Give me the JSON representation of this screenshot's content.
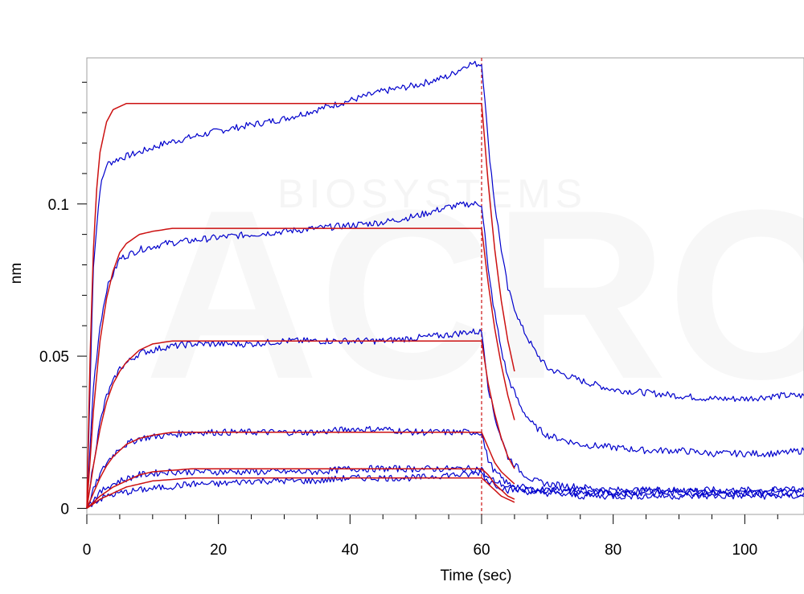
{
  "chart_data": {
    "type": "line",
    "title": "",
    "xlabel": "Time (sec)",
    "ylabel": "nm",
    "xlim": [
      0,
      109
    ],
    "ylim": [
      -0.002,
      0.148
    ],
    "grid": false,
    "legend": "none",
    "x_ticks": [
      {
        "value": 0,
        "label": "0"
      },
      {
        "value": 20,
        "label": "20"
      },
      {
        "value": 40,
        "label": "40"
      },
      {
        "value": 60,
        "label": "60"
      },
      {
        "value": 80,
        "label": "80"
      },
      {
        "value": 100,
        "label": "100"
      }
    ],
    "y_ticks": [
      {
        "value": 0,
        "label": "0"
      },
      {
        "value": 0.05,
        "label": "0.05"
      },
      {
        "value": 0.1,
        "label": "0.1"
      }
    ],
    "watermark": {
      "logo": "ACRO",
      "text": "BIOSYSTEMS"
    },
    "colors": {
      "measured": "#0000cc",
      "fit": "#cc1111",
      "marker": "#cc1111",
      "axis": "#a0a0a0"
    },
    "phase_marker_x": 60,
    "measured_series": [
      {
        "x": [
          0,
          1,
          2,
          3,
          5,
          8,
          12,
          16,
          20,
          25,
          30,
          35,
          40,
          45,
          50,
          55,
          58,
          60,
          60.5,
          61,
          62,
          63,
          64,
          66,
          68,
          70,
          75,
          80,
          85,
          90,
          95,
          100,
          105,
          109
        ],
        "y": [
          0,
          0.08,
          0.105,
          0.113,
          0.115,
          0.117,
          0.12,
          0.122,
          0.124,
          0.126,
          0.128,
          0.131,
          0.134,
          0.137,
          0.139,
          0.142,
          0.146,
          0.146,
          0.135,
          0.12,
          0.1,
          0.085,
          0.072,
          0.06,
          0.052,
          0.046,
          0.042,
          0.039,
          0.038,
          0.037,
          0.036,
          0.036,
          0.037,
          0.037
        ]
      },
      {
        "x": [
          0,
          1,
          2,
          3,
          5,
          8,
          12,
          16,
          20,
          25,
          30,
          35,
          40,
          45,
          50,
          55,
          58,
          60,
          60.5,
          61,
          62,
          63,
          64,
          66,
          68,
          70,
          75,
          80,
          85,
          90,
          95,
          100,
          105,
          109
        ],
        "y": [
          0,
          0.04,
          0.06,
          0.072,
          0.082,
          0.085,
          0.087,
          0.088,
          0.089,
          0.09,
          0.091,
          0.092,
          0.093,
          0.094,
          0.096,
          0.099,
          0.1,
          0.1,
          0.09,
          0.078,
          0.064,
          0.052,
          0.043,
          0.033,
          0.027,
          0.024,
          0.021,
          0.02,
          0.019,
          0.019,
          0.018,
          0.018,
          0.018,
          0.019
        ]
      },
      {
        "x": [
          0,
          1,
          2,
          3,
          5,
          8,
          12,
          16,
          20,
          25,
          30,
          35,
          40,
          45,
          50,
          55,
          58,
          60,
          60.5,
          61,
          62,
          63,
          64,
          66,
          68,
          70,
          75,
          80,
          85,
          90,
          95,
          100,
          105,
          109
        ],
        "y": [
          0,
          0.015,
          0.028,
          0.037,
          0.046,
          0.051,
          0.053,
          0.054,
          0.054,
          0.054,
          0.055,
          0.055,
          0.055,
          0.055,
          0.056,
          0.057,
          0.058,
          0.058,
          0.05,
          0.04,
          0.03,
          0.023,
          0.017,
          0.012,
          0.009,
          0.008,
          0.007,
          0.006,
          0.006,
          0.006,
          0.006,
          0.006,
          0.006,
          0.006
        ]
      },
      {
        "x": [
          0,
          1,
          2,
          3,
          5,
          8,
          12,
          16,
          20,
          25,
          30,
          35,
          40,
          45,
          50,
          55,
          58,
          60,
          60.5,
          61,
          62,
          63,
          64,
          66,
          68,
          70,
          75,
          80,
          85,
          90,
          95,
          100,
          105,
          109
        ],
        "y": [
          0,
          0.006,
          0.011,
          0.015,
          0.02,
          0.023,
          0.024,
          0.025,
          0.025,
          0.025,
          0.025,
          0.025,
          0.026,
          0.026,
          0.025,
          0.025,
          0.025,
          0.025,
          0.02,
          0.016,
          0.012,
          0.01,
          0.008,
          0.007,
          0.006,
          0.006,
          0.005,
          0.005,
          0.005,
          0.005,
          0.005,
          0.005,
          0.005,
          0.005
        ]
      },
      {
        "x": [
          0,
          1,
          2,
          3,
          5,
          8,
          12,
          16,
          20,
          25,
          30,
          35,
          40,
          45,
          50,
          55,
          58,
          60,
          60.5,
          61,
          62,
          63,
          64,
          66,
          68,
          70,
          75,
          80,
          85,
          90,
          95,
          100,
          105,
          109
        ],
        "y": [
          0,
          0.003,
          0.005,
          0.007,
          0.009,
          0.011,
          0.012,
          0.012,
          0.012,
          0.012,
          0.012,
          0.012,
          0.013,
          0.013,
          0.013,
          0.013,
          0.013,
          0.013,
          0.011,
          0.01,
          0.009,
          0.008,
          0.007,
          0.006,
          0.006,
          0.006,
          0.006,
          0.005,
          0.006,
          0.006,
          0.005,
          0.005,
          0.006,
          0.006
        ]
      },
      {
        "x": [
          0,
          1,
          2,
          3,
          5,
          8,
          12,
          16,
          20,
          25,
          30,
          35,
          40,
          45,
          50,
          55,
          58,
          60,
          60.5,
          61,
          62,
          63,
          64,
          66,
          68,
          70,
          75,
          80,
          85,
          90,
          95,
          100,
          105,
          109
        ],
        "y": [
          0,
          0.002,
          0.003,
          0.004,
          0.005,
          0.006,
          0.007,
          0.008,
          0.008,
          0.009,
          0.009,
          0.009,
          0.01,
          0.01,
          0.01,
          0.011,
          0.011,
          0.012,
          0.01,
          0.009,
          0.008,
          0.007,
          0.006,
          0.006,
          0.005,
          0.005,
          0.004,
          0.004,
          0.004,
          0.004,
          0.004,
          0.004,
          0.004,
          0.004
        ]
      }
    ],
    "fit_series": [
      {
        "x": [
          0,
          0.5,
          1,
          1.5,
          2,
          3,
          4,
          5,
          6,
          8,
          10,
          60,
          60.5,
          61,
          62,
          63,
          64,
          65
        ],
        "y": [
          0,
          0.05,
          0.085,
          0.105,
          0.117,
          0.127,
          0.131,
          0.132,
          0.133,
          0.133,
          0.133,
          0.133,
          0.12,
          0.107,
          0.085,
          0.068,
          0.055,
          0.045
        ]
      },
      {
        "x": [
          0,
          1,
          2,
          3,
          4,
          5,
          6,
          8,
          10,
          13,
          60,
          60.5,
          61,
          62,
          63,
          64,
          65
        ],
        "y": [
          0,
          0.032,
          0.055,
          0.069,
          0.078,
          0.084,
          0.087,
          0.09,
          0.091,
          0.092,
          0.092,
          0.083,
          0.074,
          0.059,
          0.047,
          0.037,
          0.029
        ]
      },
      {
        "x": [
          0,
          1,
          2,
          3,
          4,
          5,
          6,
          8,
          10,
          13,
          16,
          60,
          60.5,
          61,
          62,
          63,
          64,
          65
        ],
        "y": [
          0,
          0.014,
          0.026,
          0.035,
          0.041,
          0.045,
          0.048,
          0.052,
          0.054,
          0.055,
          0.055,
          0.055,
          0.048,
          0.041,
          0.031,
          0.023,
          0.017,
          0.013
        ]
      },
      {
        "x": [
          0,
          1,
          2,
          3,
          4,
          5,
          6,
          8,
          10,
          13,
          16,
          60,
          61,
          62,
          63,
          64,
          65
        ],
        "y": [
          0,
          0.005,
          0.01,
          0.014,
          0.017,
          0.019,
          0.021,
          0.023,
          0.024,
          0.025,
          0.025,
          0.025,
          0.02,
          0.015,
          0.012,
          0.01,
          0.008
        ]
      },
      {
        "x": [
          0,
          2,
          4,
          6,
          8,
          10,
          13,
          16,
          20,
          60,
          61,
          62,
          63,
          64,
          65
        ],
        "y": [
          0,
          0.004,
          0.007,
          0.009,
          0.011,
          0.012,
          0.0125,
          0.013,
          0.013,
          0.013,
          0.011,
          0.008,
          0.006,
          0.004,
          0.003
        ]
      },
      {
        "x": [
          0,
          2,
          4,
          6,
          8,
          10,
          13,
          16,
          20,
          60,
          61,
          62,
          63,
          64,
          65
        ],
        "y": [
          0,
          0.003,
          0.005,
          0.007,
          0.008,
          0.009,
          0.0095,
          0.01,
          0.01,
          0.01,
          0.008,
          0.006,
          0.004,
          0.003,
          0.002
        ]
      }
    ]
  }
}
